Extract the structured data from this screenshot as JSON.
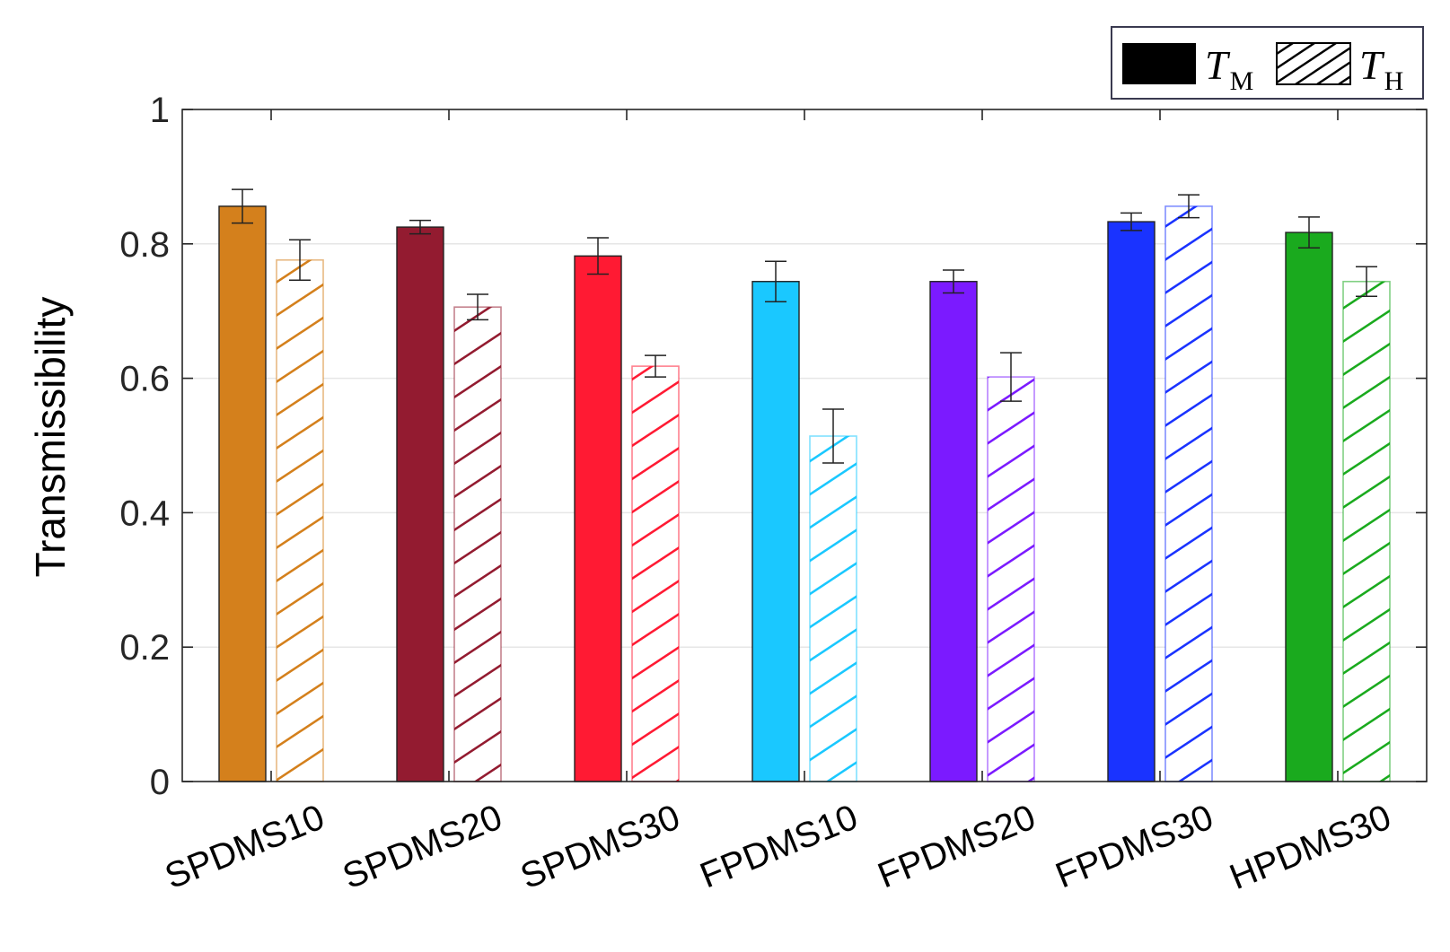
{
  "chart_data": {
    "type": "bar",
    "categories": [
      "SPDMS10",
      "SPDMS20",
      "SPDMS30",
      "FPDMS10",
      "FPDMS20",
      "FPDMS30",
      "HPDMS30"
    ],
    "category_colors": [
      "#D4801C",
      "#931B30",
      "#FF1A33",
      "#1AC8FF",
      "#7B1AFF",
      "#1A33FF",
      "#1AAA1E"
    ],
    "series": [
      {
        "name": "T",
        "name_sub": "M",
        "style": "solid",
        "values": [
          0.856,
          0.825,
          0.782,
          0.744,
          0.744,
          0.833,
          0.817
        ],
        "errors": [
          0.025,
          0.01,
          0.027,
          0.03,
          0.017,
          0.013,
          0.023
        ]
      },
      {
        "name": "T",
        "name_sub": "H",
        "style": "hatched",
        "values": [
          0.776,
          0.706,
          0.618,
          0.514,
          0.602,
          0.856,
          0.744
        ],
        "errors": [
          0.03,
          0.019,
          0.016,
          0.04,
          0.036,
          0.017,
          0.022
        ]
      }
    ],
    "title": "",
    "xlabel": "",
    "ylabel": "Transmissibility",
    "ylim": [
      0,
      1
    ],
    "yticks": [
      0,
      0.2,
      0.4,
      0.6,
      0.8,
      1
    ],
    "ytick_labels": [
      "0",
      "0.2",
      "0.4",
      "0.6",
      "0.8",
      "1"
    ],
    "grid": "horizontal",
    "legend_position": "top-right",
    "legend_colors": {
      "solid": "#000000",
      "hatched": "#000000"
    }
  }
}
